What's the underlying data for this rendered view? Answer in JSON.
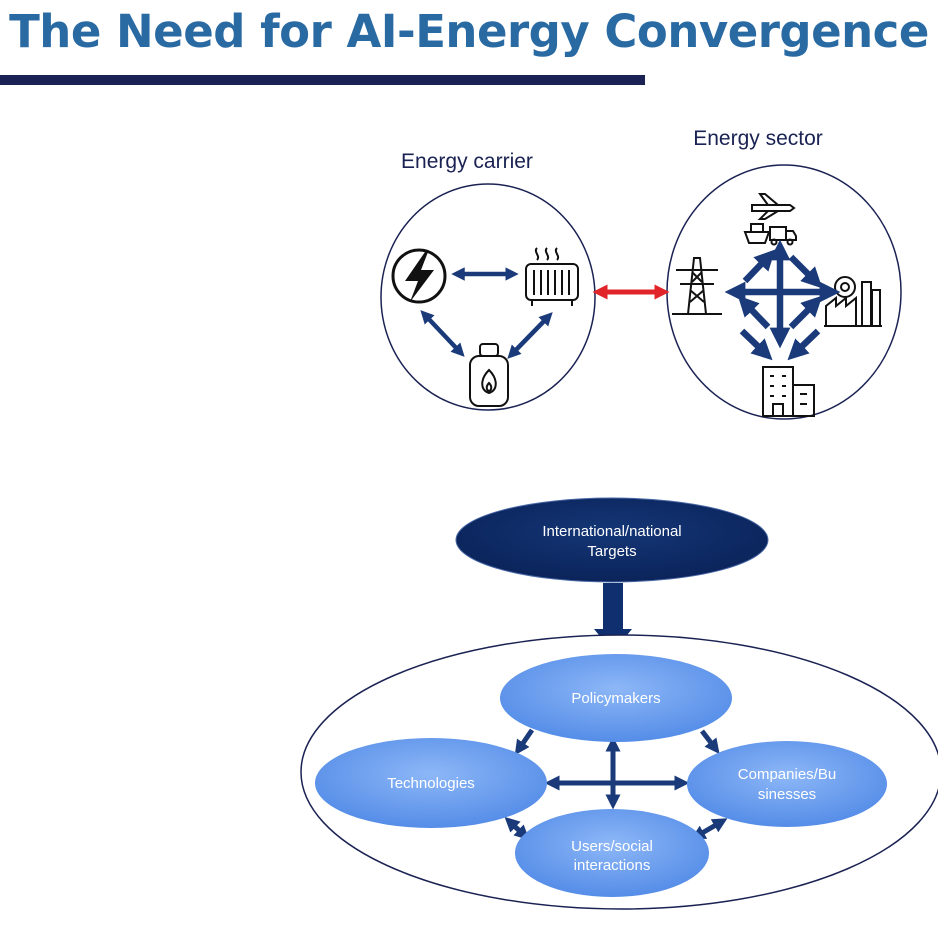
{
  "slide": {
    "title": "The Need for AI-Energy Convergence"
  },
  "top_diagram": {
    "carrier_label": "Energy carrier",
    "sector_label": "Energy sector"
  },
  "bottom_diagram": {
    "targets": [
      "International/national",
      "Targets"
    ],
    "policymakers": "Policymakers",
    "technologies": "Technologies",
    "companies": [
      "Companies/Bu",
      "sinesses"
    ],
    "users": [
      "Users/social",
      "interactions"
    ]
  },
  "colors": {
    "title": "#2a6aa3",
    "rule": "#1a2253",
    "arrow_navy": "#1a3a7a",
    "arrow_red": "#e0242a",
    "ellipse_blue": "#6d9ef0",
    "targets_fill": "#0e2a66"
  }
}
